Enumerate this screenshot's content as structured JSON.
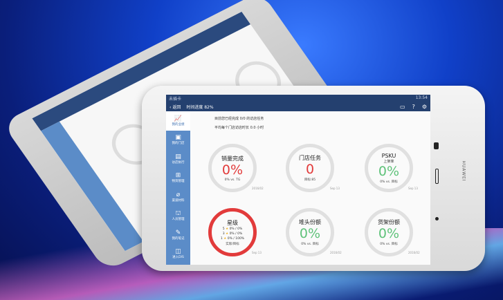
{
  "status": {
    "carrier": "未插卡",
    "time": "13:54"
  },
  "header": {
    "back": "返回",
    "progress": "时间进度 82%"
  },
  "sidebar": {
    "items": [
      {
        "label": "我的业绩",
        "icon": "chart-icon",
        "active": true
      },
      {
        "label": "我的门店",
        "icon": "store-icon"
      },
      {
        "label": "访店执行",
        "icon": "clipboard-icon"
      },
      {
        "label": "物资管理",
        "icon": "grid-icon"
      },
      {
        "label": "渠道材料",
        "icon": "paperclip-icon"
      },
      {
        "label": "人员管理",
        "icon": "people-icon"
      },
      {
        "label": "我的笔记",
        "icon": "note-icon"
      },
      {
        "label": "进入DIS",
        "icon": "list-icon"
      }
    ]
  },
  "messages": [
    "目前您已经完成 0/0 的访店任务",
    "平均每个门店访店时长 0.0 小时"
  ],
  "cards": [
    {
      "title": "销量完成",
      "subtitle": "",
      "value": "0%",
      "color": "#e23b3b",
      "caption": "0% vs. TG",
      "date": "2016/02"
    },
    {
      "title": "门店任务",
      "subtitle": "",
      "value": "0",
      "color": "#e23b3b",
      "caption": "目标:85",
      "date": "Sep 13"
    },
    {
      "title": "PSKU",
      "subtitle": "上架率",
      "value": "0%",
      "color": "#5fc27a",
      "caption": "0% vs. 目标",
      "date": "Sep 13"
    },
    {
      "title": "星级",
      "stars": [
        {
          "n": "5",
          "v": "0% / 0%"
        },
        {
          "n": "3",
          "v": "0% / 0%"
        },
        {
          "n": "1",
          "v": "0% / 100%"
        }
      ],
      "caption": "实际/目标",
      "date": "Sep 13"
    },
    {
      "title": "堆头份额",
      "subtitle": "",
      "value": "0%",
      "color": "#5fc27a",
      "caption": "0% vs. 目标",
      "date": "2016/02"
    },
    {
      "title": "货架份额",
      "subtitle": "",
      "value": "0%",
      "color": "#5fc27a",
      "caption": "0% vs. 目标",
      "date": "2016/02"
    }
  ],
  "brand": "HUAWEI"
}
